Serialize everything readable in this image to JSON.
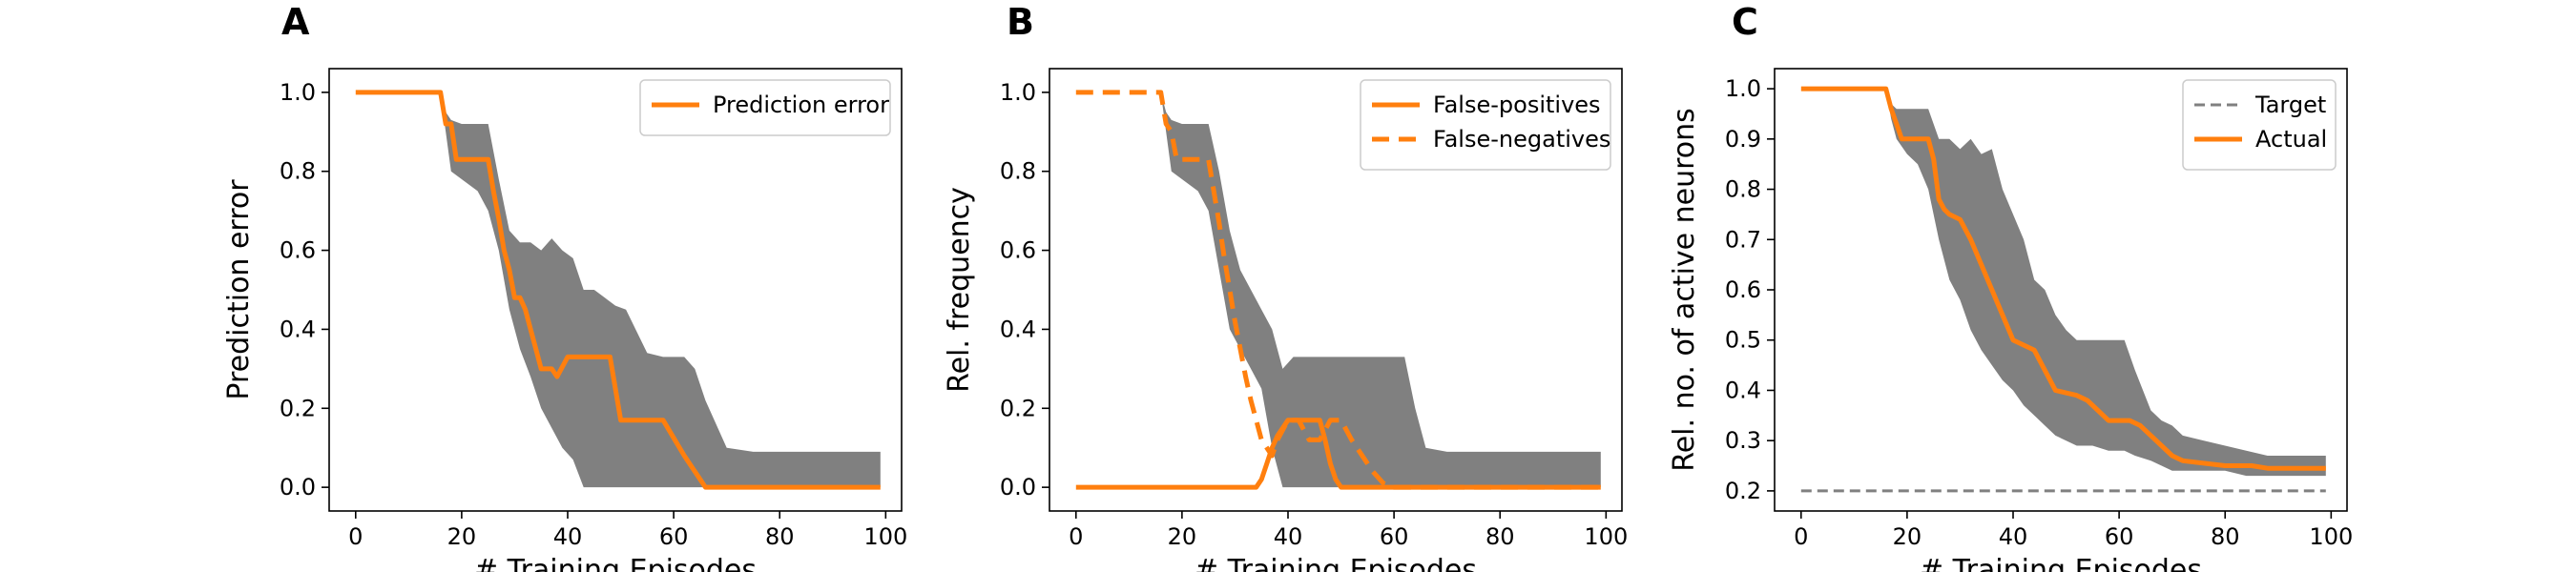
{
  "colors": {
    "orange": "#ff7f0e",
    "band": "#808080",
    "target": "#808080",
    "axis": "#000000"
  },
  "chart_data": [
    {
      "panel_label": "A",
      "type": "line",
      "xlabel": "# Training Episodes",
      "ylabel": "Prediction error",
      "xlim": [
        -5,
        103
      ],
      "ylim": [
        -0.06,
        1.06
      ],
      "xticks": [
        0,
        20,
        40,
        60,
        80,
        100
      ],
      "yticks": [
        0.0,
        0.2,
        0.4,
        0.6,
        0.8,
        1.0
      ],
      "ytick_labels": [
        "0.0",
        "0.2",
        "0.4",
        "0.6",
        "0.8",
        "1.0"
      ],
      "legend_position": "upper right",
      "grid": false,
      "band": {
        "x": [
          0,
          16,
          17,
          18,
          20,
          23,
          25,
          27,
          29,
          31,
          33,
          35,
          37,
          39,
          41,
          43,
          45,
          47,
          49,
          51,
          55,
          58,
          60,
          62,
          64,
          66,
          70,
          75,
          80,
          85,
          90,
          95,
          99
        ],
        "upper": [
          1.0,
          1.0,
          0.95,
          0.93,
          0.92,
          0.92,
          0.92,
          0.78,
          0.65,
          0.62,
          0.62,
          0.6,
          0.63,
          0.6,
          0.58,
          0.5,
          0.5,
          0.48,
          0.46,
          0.45,
          0.34,
          0.33,
          0.33,
          0.33,
          0.3,
          0.22,
          0.1,
          0.09,
          0.09,
          0.09,
          0.09,
          0.09,
          0.09
        ],
        "lower": [
          1.0,
          1.0,
          0.9,
          0.8,
          0.78,
          0.75,
          0.7,
          0.6,
          0.45,
          0.35,
          0.28,
          0.2,
          0.15,
          0.1,
          0.07,
          0.0,
          0.0,
          0.0,
          0.0,
          0.0,
          0.0,
          0.0,
          0.0,
          0.0,
          0.0,
          0.0,
          0.0,
          0.0,
          0.0,
          0.0,
          0.0,
          0.0,
          0.0
        ]
      },
      "series": [
        {
          "name": "Prediction error",
          "style": "solid",
          "x": [
            0,
            16,
            17,
            18,
            19,
            20,
            25,
            26,
            27,
            28,
            29,
            30,
            31,
            32,
            33,
            34,
            35,
            37,
            38,
            40,
            42,
            48,
            50,
            52,
            58,
            62,
            66,
            70,
            80,
            90,
            99
          ],
          "y": [
            1.0,
            1.0,
            0.92,
            0.92,
            0.83,
            0.83,
            0.83,
            0.75,
            0.68,
            0.6,
            0.55,
            0.48,
            0.48,
            0.45,
            0.4,
            0.35,
            0.3,
            0.3,
            0.28,
            0.33,
            0.33,
            0.33,
            0.17,
            0.17,
            0.17,
            0.08,
            0.0,
            0.0,
            0.0,
            0.0,
            0.0
          ]
        }
      ]
    },
    {
      "panel_label": "B",
      "type": "line",
      "xlabel": "# Training Episodes",
      "ylabel": "Rel. frequency",
      "xlim": [
        -5,
        103
      ],
      "ylim": [
        -0.06,
        1.06
      ],
      "xticks": [
        0,
        20,
        40,
        60,
        80,
        100
      ],
      "yticks": [
        0.0,
        0.2,
        0.4,
        0.6,
        0.8,
        1.0
      ],
      "ytick_labels": [
        "0.0",
        "0.2",
        "0.4",
        "0.6",
        "0.8",
        "1.0"
      ],
      "legend_position": "upper right",
      "grid": false,
      "band": {
        "x": [
          0,
          16,
          17,
          18,
          20,
          23,
          25,
          27,
          29,
          31,
          33,
          35,
          37,
          39,
          41,
          43,
          45,
          48,
          51,
          55,
          58,
          62,
          64,
          66,
          70,
          75,
          80,
          85,
          90,
          95,
          99
        ],
        "upper": [
          1.0,
          1.0,
          0.95,
          0.93,
          0.92,
          0.92,
          0.92,
          0.8,
          0.65,
          0.55,
          0.5,
          0.45,
          0.4,
          0.3,
          0.33,
          0.33,
          0.33,
          0.33,
          0.33,
          0.33,
          0.33,
          0.33,
          0.2,
          0.1,
          0.09,
          0.09,
          0.09,
          0.09,
          0.09,
          0.09,
          0.09
        ],
        "lower": [
          1.0,
          1.0,
          0.9,
          0.8,
          0.78,
          0.75,
          0.7,
          0.55,
          0.4,
          0.35,
          0.3,
          0.25,
          0.1,
          0.0,
          0.0,
          0.0,
          0.0,
          0.0,
          0.0,
          0.0,
          0.0,
          0.0,
          0.0,
          0.0,
          0.0,
          0.0,
          0.0,
          0.0,
          0.0,
          0.0,
          0.0
        ]
      },
      "series": [
        {
          "name": "False-positives",
          "style": "solid",
          "x": [
            0,
            10,
            20,
            30,
            34,
            35,
            36,
            37,
            38,
            40,
            42,
            44,
            46,
            47,
            48,
            49,
            50,
            60,
            70,
            80,
            90,
            99
          ],
          "y": [
            0.0,
            0.0,
            0.0,
            0.0,
            0.0,
            0.02,
            0.06,
            0.1,
            0.13,
            0.17,
            0.17,
            0.17,
            0.17,
            0.12,
            0.06,
            0.02,
            0.0,
            0.0,
            0.0,
            0.0,
            0.0,
            0.0
          ]
        },
        {
          "name": "False-negatives",
          "style": "dashed",
          "x": [
            0,
            16,
            17,
            18,
            19,
            20,
            25,
            26,
            27,
            28,
            29,
            30,
            31,
            32,
            33,
            34,
            35,
            36,
            37,
            38,
            40,
            42,
            44,
            46,
            48,
            50,
            52,
            54,
            56,
            58,
            60,
            70,
            80,
            90,
            99
          ],
          "y": [
            1.0,
            1.0,
            0.92,
            0.9,
            0.83,
            0.83,
            0.83,
            0.75,
            0.67,
            0.58,
            0.5,
            0.42,
            0.35,
            0.28,
            0.22,
            0.17,
            0.12,
            0.1,
            0.08,
            0.12,
            0.17,
            0.17,
            0.12,
            0.12,
            0.17,
            0.17,
            0.12,
            0.08,
            0.04,
            0.01,
            0.0,
            0.0,
            0.0,
            0.0,
            0.0
          ]
        }
      ]
    },
    {
      "panel_label": "C",
      "type": "line",
      "xlabel": "# Training Episodes",
      "ylabel": "Rel. no. of active neurons",
      "xlim": [
        -5,
        103
      ],
      "ylim": [
        0.16,
        1.04
      ],
      "xticks": [
        0,
        20,
        40,
        60,
        80,
        100
      ],
      "yticks": [
        0.2,
        0.3,
        0.4,
        0.5,
        0.6,
        0.7,
        0.8,
        0.9,
        1.0
      ],
      "ytick_labels": [
        "0.2",
        "0.3",
        "0.4",
        "0.5",
        "0.6",
        "0.7",
        "0.8",
        "0.9",
        "1.0"
      ],
      "legend_position": "upper right",
      "grid": false,
      "band": {
        "x": [
          0,
          16,
          17,
          18,
          20,
          22,
          24,
          26,
          28,
          30,
          32,
          34,
          36,
          38,
          40,
          42,
          44,
          46,
          48,
          50,
          52,
          55,
          58,
          61,
          63,
          66,
          68,
          70,
          72,
          76,
          80,
          84,
          88,
          92,
          96,
          99
        ],
        "upper": [
          1.0,
          1.0,
          0.97,
          0.96,
          0.96,
          0.96,
          0.96,
          0.9,
          0.9,
          0.88,
          0.9,
          0.87,
          0.88,
          0.8,
          0.75,
          0.7,
          0.62,
          0.6,
          0.55,
          0.52,
          0.5,
          0.5,
          0.5,
          0.5,
          0.44,
          0.36,
          0.34,
          0.33,
          0.31,
          0.3,
          0.29,
          0.28,
          0.27,
          0.27,
          0.27,
          0.27
        ],
        "lower": [
          1.0,
          1.0,
          0.94,
          0.9,
          0.87,
          0.85,
          0.8,
          0.7,
          0.62,
          0.58,
          0.52,
          0.48,
          0.45,
          0.42,
          0.4,
          0.37,
          0.35,
          0.33,
          0.31,
          0.3,
          0.29,
          0.29,
          0.28,
          0.28,
          0.27,
          0.26,
          0.25,
          0.24,
          0.24,
          0.24,
          0.24,
          0.23,
          0.23,
          0.23,
          0.23,
          0.23
        ]
      },
      "series": [
        {
          "name": "Target",
          "style": "dashed",
          "x": [
            0,
            99
          ],
          "y": [
            0.2,
            0.2
          ]
        },
        {
          "name": "Actual",
          "style": "solid",
          "x": [
            0,
            16,
            17,
            18,
            19,
            20,
            24,
            25,
            26,
            27,
            28,
            30,
            32,
            34,
            36,
            38,
            40,
            42,
            44,
            46,
            48,
            52,
            54,
            56,
            58,
            62,
            64,
            66,
            68,
            70,
            72,
            80,
            85,
            88,
            99
          ],
          "y": [
            1.0,
            1.0,
            0.96,
            0.93,
            0.9,
            0.9,
            0.9,
            0.86,
            0.78,
            0.76,
            0.75,
            0.74,
            0.7,
            0.65,
            0.6,
            0.55,
            0.5,
            0.49,
            0.48,
            0.44,
            0.4,
            0.39,
            0.38,
            0.36,
            0.34,
            0.34,
            0.33,
            0.31,
            0.29,
            0.27,
            0.26,
            0.25,
            0.25,
            0.245,
            0.245
          ]
        }
      ]
    }
  ]
}
